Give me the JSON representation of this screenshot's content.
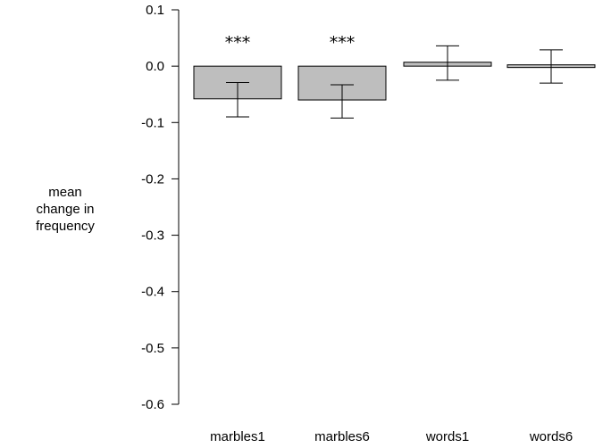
{
  "chart_data": {
    "type": "bar",
    "title": "",
    "xlabel": "",
    "ylabel_lines": [
      "mean",
      "change in",
      "frequency"
    ],
    "categories": [
      "marbles1",
      "marbles6",
      "words1",
      "words6"
    ],
    "values": [
      -0.058,
      -0.06,
      0.007,
      0.002
    ],
    "error_low": [
      -0.09,
      -0.092,
      -0.025,
      -0.03
    ],
    "error_high": [
      -0.029,
      -0.033,
      0.036,
      0.029
    ],
    "significance": [
      "***",
      "***",
      "",
      ""
    ],
    "ylim": [
      -0.6,
      0.1
    ],
    "yticks": [
      0.1,
      0.0,
      -0.1,
      -0.2,
      -0.3,
      -0.4,
      -0.5,
      -0.6
    ],
    "ytick_labels": [
      "0.1",
      "0.0",
      "-0.1",
      "-0.2",
      "-0.3",
      "-0.4",
      "-0.5",
      "-0.6"
    ],
    "grid": false,
    "bar_color": "#bebebe",
    "bar_edge_color": "#000000"
  }
}
